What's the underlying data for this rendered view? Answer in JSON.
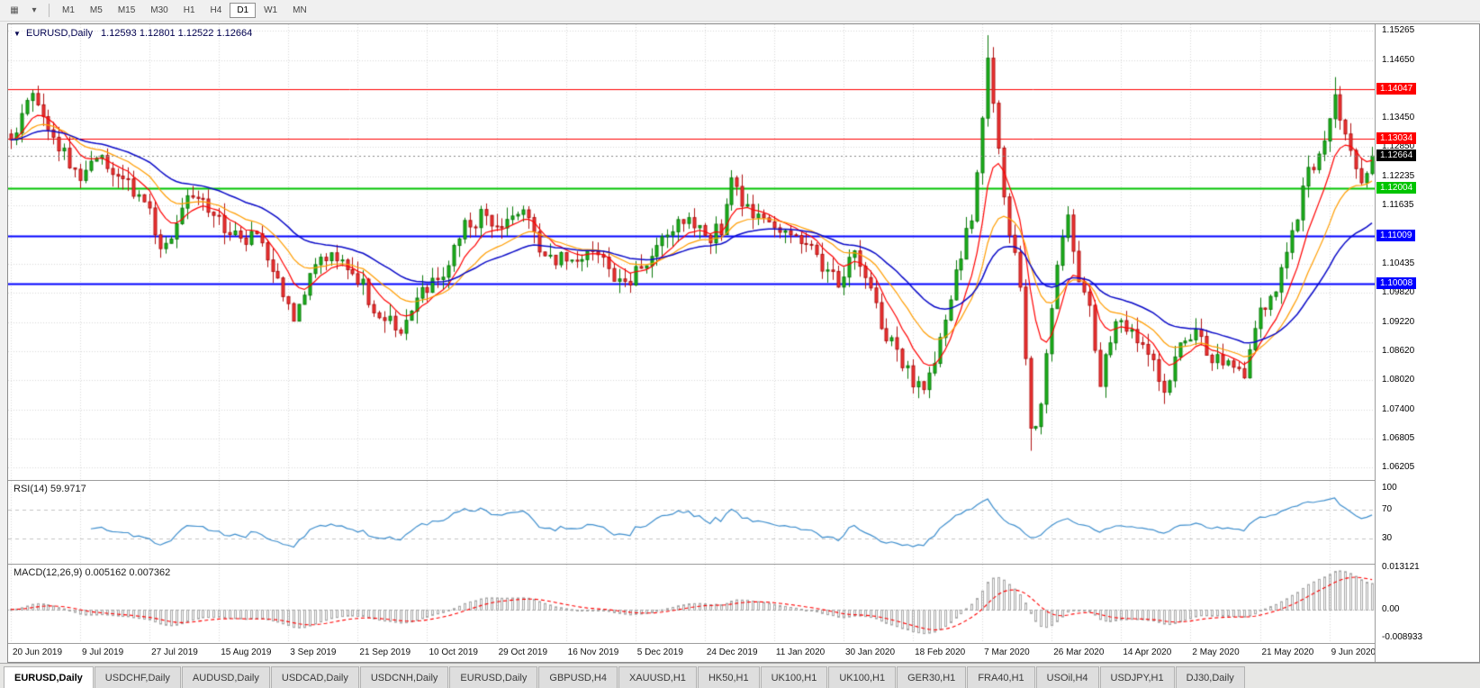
{
  "toolbar": {
    "icons": [
      {
        "name": "chart-type-icon",
        "glyph": "▦"
      },
      {
        "name": "dropdown-arrow-icon",
        "glyph": "▾"
      }
    ],
    "timeframes": [
      "M1",
      "M5",
      "M15",
      "M30",
      "H1",
      "H4",
      "D1",
      "W1",
      "MN"
    ],
    "active_timeframe": "D1"
  },
  "chart_data": {
    "type": "candlestick",
    "title": "EURUSD,Daily",
    "symbol_dropdown_glyph": "▼",
    "ohlc_display": "1.12593 1.12801 1.12522 1.12664",
    "num_candles": 256,
    "candles_per_xtick": 13,
    "y_range": [
      1.0594,
      1.154
    ],
    "y_axis_ticks": [
      1.15265,
      1.1465,
      1.1345,
      1.1285,
      1.12235,
      1.11635,
      1.10435,
      1.0982,
      1.0922,
      1.0862,
      1.0802,
      1.074,
      1.06805,
      1.06205
    ],
    "x_tick_labels": [
      "20 Jun 2019",
      "9 Jul 2019",
      "27 Jul 2019",
      "15 Aug 2019",
      "3 Sep 2019",
      "21 Sep 2019",
      "10 Oct 2019",
      "29 Oct 2019",
      "16 Nov 2019",
      "5 Dec 2019",
      "24 Dec 2019",
      "11 Jan 2020",
      "30 Jan 2020",
      "18 Feb 2020",
      "7 Mar 2020",
      "26 Mar 2020",
      "14 Apr 2020",
      "2 May 2020",
      "21 May 2020",
      "9 Jun 2020"
    ],
    "close_waypoints": [
      [
        0,
        1.13
      ],
      [
        2,
        1.1358
      ],
      [
        4,
        1.1396
      ],
      [
        6,
        1.1352
      ],
      [
        9,
        1.1282
      ],
      [
        13,
        1.1226
      ],
      [
        16,
        1.1266
      ],
      [
        19,
        1.1244
      ],
      [
        22,
        1.1208
      ],
      [
        26,
        1.1148
      ],
      [
        28,
        1.1078
      ],
      [
        30,
        1.1106
      ],
      [
        33,
        1.1196
      ],
      [
        36,
        1.1168
      ],
      [
        39,
        1.1134
      ],
      [
        43,
        1.109
      ],
      [
        46,
        1.1098
      ],
      [
        49,
        1.104
      ],
      [
        51,
        1.0986
      ],
      [
        53,
        1.0932
      ],
      [
        57,
        1.104
      ],
      [
        60,
        1.1072
      ],
      [
        63,
        1.1034
      ],
      [
        66,
        1.1004
      ],
      [
        68,
        1.0944
      ],
      [
        71,
        1.092
      ],
      [
        73,
        1.0896
      ],
      [
        76,
        1.0976
      ],
      [
        79,
        1.0998
      ],
      [
        82,
        1.104
      ],
      [
        85,
        1.112
      ],
      [
        88,
        1.114
      ],
      [
        91,
        1.1106
      ],
      [
        94,
        1.113
      ],
      [
        96,
        1.116
      ],
      [
        99,
        1.1076
      ],
      [
        102,
        1.105
      ],
      [
        106,
        1.1056
      ],
      [
        110,
        1.1062
      ],
      [
        113,
        1.102
      ],
      [
        116,
        1.1012
      ],
      [
        120,
        1.1062
      ],
      [
        124,
        1.1112
      ],
      [
        127,
        1.114
      ],
      [
        130,
        1.1092
      ],
      [
        133,
        1.1118
      ],
      [
        135,
        1.121
      ],
      [
        137,
        1.1168
      ],
      [
        140,
        1.1138
      ],
      [
        143,
        1.1122
      ],
      [
        146,
        1.1106
      ],
      [
        149,
        1.1092
      ],
      [
        152,
        1.1038
      ],
      [
        155,
        1.1008
      ],
      [
        158,
        1.1062
      ],
      [
        161,
        1.099
      ],
      [
        163,
        1.0912
      ],
      [
        166,
        1.0858
      ],
      [
        169,
        1.08
      ],
      [
        171,
        1.0788
      ],
      [
        174,
        1.0882
      ],
      [
        177,
        1.1028
      ],
      [
        180,
        1.1138
      ],
      [
        183,
        1.1455
      ],
      [
        185,
        1.1278
      ],
      [
        187,
        1.1108
      ],
      [
        189,
        1.0995
      ],
      [
        191,
        1.07
      ],
      [
        193,
        1.0736
      ],
      [
        195,
        1.0962
      ],
      [
        197,
        1.1088
      ],
      [
        198,
        1.113
      ],
      [
        200,
        1.1012
      ],
      [
        202,
        1.0958
      ],
      [
        204,
        1.08
      ],
      [
        207,
        1.0928
      ],
      [
        210,
        1.0908
      ],
      [
        213,
        1.0862
      ],
      [
        216,
        1.0782
      ],
      [
        219,
        1.0872
      ],
      [
        222,
        1.0905
      ],
      [
        225,
        1.0838
      ],
      [
        228,
        1.0852
      ],
      [
        231,
        1.0822
      ],
      [
        234,
        1.0952
      ],
      [
        237,
        1.0988
      ],
      [
        240,
        1.1105
      ],
      [
        243,
        1.1232
      ],
      [
        246,
        1.1288
      ],
      [
        248,
        1.1388
      ],
      [
        250,
        1.1322
      ],
      [
        252,
        1.1252
      ],
      [
        253,
        1.1212
      ],
      [
        254,
        1.124
      ],
      [
        255,
        1.12664
      ]
    ],
    "last_close": 1.12664,
    "colors": {
      "background": "#ffffff",
      "grid": "#d9d9d9",
      "bull_fill": "#1db31d",
      "bull_stroke": "#0b7a0b",
      "bear_fill": "#f03434",
      "bear_stroke": "#b11212"
    },
    "moving_averages": [
      {
        "name": "fast-ma",
        "period": 8,
        "color": "#ff0000",
        "width": 1.2
      },
      {
        "name": "medium-ma",
        "period": 17,
        "color": "#ff9d00",
        "width": 1.2
      },
      {
        "name": "slow-ma",
        "period": 34,
        "color": "#0a0ac8",
        "width": 1.5
      }
    ],
    "horizontal_lines": [
      {
        "value": 1.14047,
        "label": "1.14047",
        "color": "#ff0000",
        "width": 1
      },
      {
        "value": 1.13034,
        "label": "1.13034",
        "color": "#ff0000",
        "width": 1
      },
      {
        "value": 1.12004,
        "label": "1.12004",
        "color": "#00c400",
        "width": 2
      },
      {
        "value": 1.11009,
        "label": "1.11009",
        "color": "#0000ff",
        "width": 2
      },
      {
        "value": 1.10008,
        "label": "1.10008",
        "color": "#0000ff",
        "width": 2
      }
    ],
    "current_price": {
      "value": 1.12664,
      "label": "1.12664",
      "color": "#000000"
    },
    "rsi": {
      "label": "RSI(14) 59.9717",
      "period": 14,
      "value": 59.9717,
      "axis_labels": [
        100,
        70,
        30
      ],
      "dashed_levels": [
        70,
        30
      ],
      "scale_max": 110,
      "scale_min": -5,
      "color": "#3f8fce"
    },
    "macd": {
      "label": "MACD(12,26,9) 0.005162 0.007362",
      "fast": 12,
      "slow": 26,
      "signal_period": 9,
      "main_value": 0.005162,
      "signal_value": 0.007362,
      "axis_labels": [
        "0.013121",
        "0.00",
        "-0.008933"
      ],
      "scale_max": 0.014,
      "scale_min": -0.0105,
      "histogram_color": "#a8a8a8",
      "signal_color": "#ff0000"
    }
  },
  "tabs": [
    {
      "label": "EURUSD,Daily",
      "active": true
    },
    {
      "label": "USDCHF,Daily",
      "active": false
    },
    {
      "label": "AUDUSD,Daily",
      "active": false
    },
    {
      "label": "USDCAD,Daily",
      "active": false
    },
    {
      "label": "USDCNH,Daily",
      "active": false
    },
    {
      "label": "EURUSD,Daily",
      "active": false
    },
    {
      "label": "GBPUSD,H4",
      "active": false
    },
    {
      "label": "XAUUSD,H1",
      "active": false
    },
    {
      "label": "HK50,H1",
      "active": false
    },
    {
      "label": "UK100,H1",
      "active": false
    },
    {
      "label": "UK100,H1",
      "active": false
    },
    {
      "label": "GER30,H1",
      "active": false
    },
    {
      "label": "FRA40,H1",
      "active": false
    },
    {
      "label": "USOil,H4",
      "active": false
    },
    {
      "label": "USDJPY,H1",
      "active": false
    },
    {
      "label": "DJ30,Daily",
      "active": false
    }
  ]
}
